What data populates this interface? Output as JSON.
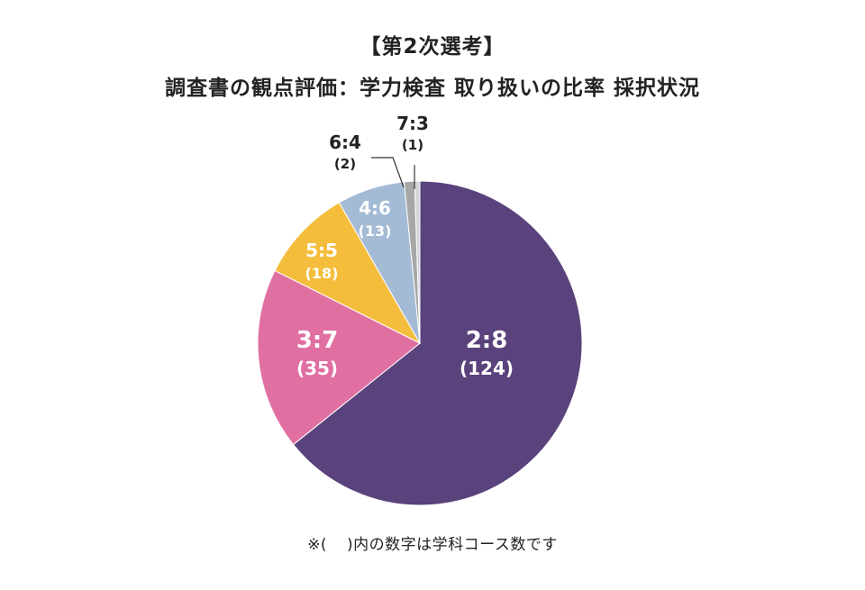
{
  "title": "【第2次選考】",
  "subtitle": "調査書の観点評価：学力検査 取り扱いの比率 採択状況",
  "note_prefix": "※(",
  "note_suffix": ")内の数字は学科コース数です",
  "chart_data": {
    "type": "pie",
    "slices": [
      {
        "label": "2:8",
        "count": "(124)",
        "value": 124,
        "color": "#5a427c",
        "text_color": "#ffffff"
      },
      {
        "label": "3:7",
        "count": "(35)",
        "value": 35,
        "color": "#e06fa2",
        "text_color": "#ffffff"
      },
      {
        "label": "5:5",
        "count": "(18)",
        "value": 18,
        "color": "#f5bd3c",
        "text_color": "#ffffff"
      },
      {
        "label": "4:6",
        "count": "(13)",
        "value": 13,
        "color": "#a4bbd5",
        "text_color": "#ffffff"
      },
      {
        "label": "6:4",
        "count": "(2)",
        "value": 2,
        "color": "#a7a7a7",
        "text_color": "#222222"
      },
      {
        "label": "7:3",
        "count": "(1)",
        "value": 1,
        "color": "#d4d4d4",
        "text_color": "#222222"
      }
    ]
  }
}
